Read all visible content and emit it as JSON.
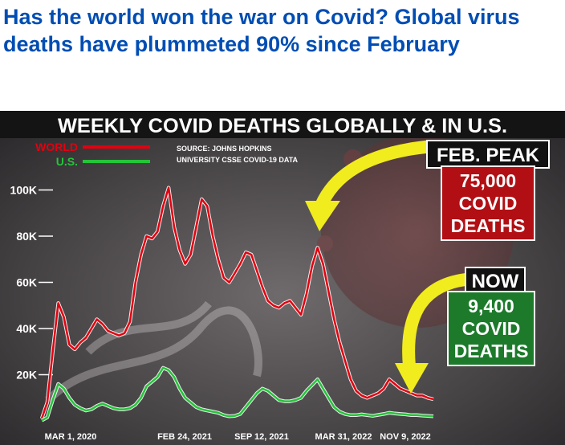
{
  "headline": "Has the world won the war on Covid? Global virus deaths have plummeted 90% since February",
  "chart_data": {
    "type": "line",
    "title": "WEEKLY COVID DEATHS GLOBALLY & IN U.S.",
    "source": "SOURCE: JOHNS HOPKINS",
    "source_line2": "UNIVERSITY CSSE COVID-19 DATA",
    "xlabel": "",
    "ylabel": "",
    "ylim": [
      0,
      110000
    ],
    "yticks": [
      {
        "value": 20000,
        "label": "20K"
      },
      {
        "value": 40000,
        "label": "40K"
      },
      {
        "value": 60000,
        "label": "60K"
      },
      {
        "value": 80000,
        "label": "80K"
      },
      {
        "value": 100000,
        "label": "100K"
      }
    ],
    "xticks": [
      "MAR 1, 2020",
      "FEB 24, 2021",
      "SEP 12, 2021",
      "MAR 31, 2022",
      "NOV 9, 2022"
    ],
    "x": [
      "2020-03-01",
      "2020-03-15",
      "2020-03-29",
      "2020-04-12",
      "2020-04-26",
      "2020-05-10",
      "2020-05-24",
      "2020-06-07",
      "2020-06-21",
      "2020-07-05",
      "2020-07-19",
      "2020-08-02",
      "2020-08-16",
      "2020-08-30",
      "2020-09-13",
      "2020-09-27",
      "2020-10-11",
      "2020-10-25",
      "2020-11-08",
      "2020-11-22",
      "2020-12-06",
      "2020-12-20",
      "2021-01-03",
      "2021-01-17",
      "2021-01-31",
      "2021-02-14",
      "2021-02-28",
      "2021-03-14",
      "2021-03-28",
      "2021-04-11",
      "2021-04-25",
      "2021-05-09",
      "2021-05-23",
      "2021-06-06",
      "2021-06-20",
      "2021-07-04",
      "2021-07-18",
      "2021-08-01",
      "2021-08-15",
      "2021-08-29",
      "2021-09-12",
      "2021-09-26",
      "2021-10-10",
      "2021-10-24",
      "2021-11-07",
      "2021-11-21",
      "2021-12-05",
      "2021-12-19",
      "2022-01-02",
      "2022-01-16",
      "2022-01-30",
      "2022-02-13",
      "2022-02-27",
      "2022-03-13",
      "2022-03-27",
      "2022-04-10",
      "2022-04-24",
      "2022-05-08",
      "2022-05-22",
      "2022-06-05",
      "2022-06-19",
      "2022-07-03",
      "2022-07-17",
      "2022-07-31",
      "2022-08-14",
      "2022-08-28",
      "2022-09-11",
      "2022-09-25",
      "2022-10-09",
      "2022-10-23",
      "2022-11-06",
      "2022-11-20"
    ],
    "series": [
      {
        "name": "WORLD",
        "color": "#e3000f",
        "values": [
          1000,
          8000,
          30000,
          51000,
          45000,
          33000,
          31000,
          34000,
          36000,
          40000,
          44000,
          42000,
          39000,
          38000,
          37000,
          38000,
          43000,
          60000,
          72000,
          80000,
          79000,
          82000,
          93000,
          101000,
          84000,
          74000,
          68000,
          72000,
          84000,
          96000,
          93000,
          80000,
          70000,
          62000,
          60000,
          64000,
          68000,
          73000,
          72000,
          65000,
          58000,
          52000,
          50000,
          49000,
          51000,
          52000,
          49000,
          46000,
          55000,
          67000,
          75000,
          68000,
          56000,
          44000,
          34000,
          26000,
          18000,
          13000,
          11000,
          10000,
          11000,
          12000,
          14000,
          18000,
          16000,
          14000,
          13000,
          12000,
          11000,
          11000,
          10000,
          9400
        ]
      },
      {
        "name": "U.S.",
        "color": "#25c43a",
        "values": [
          200,
          1500,
          9000,
          16000,
          14000,
          10000,
          7000,
          5500,
          4500,
          5000,
          6500,
          7500,
          6500,
          5500,
          5000,
          5000,
          5500,
          7000,
          10000,
          15000,
          17000,
          19000,
          23000,
          22000,
          19000,
          14000,
          10000,
          8000,
          6000,
          5000,
          4500,
          4000,
          3500,
          2500,
          2000,
          2200,
          3000,
          6000,
          9000,
          12000,
          14000,
          13000,
          11000,
          9000,
          8500,
          8500,
          9000,
          10000,
          13000,
          15500,
          18000,
          14000,
          10000,
          6000,
          4000,
          3000,
          2500,
          2500,
          2800,
          2500,
          2200,
          2600,
          3000,
          3500,
          3200,
          3000,
          2800,
          2500,
          2500,
          2300,
          2200,
          2000
        ]
      }
    ],
    "legend": [
      "WORLD",
      "U.S."
    ],
    "annotations": [
      {
        "title": "FEB. PEAK",
        "lines": [
          "75,000",
          "COVID",
          "DEATHS"
        ],
        "color": "#b10f14"
      },
      {
        "title": "NOW",
        "lines": [
          "9,400",
          "COVID",
          "DEATHS"
        ],
        "color": "#1c7a2a"
      }
    ],
    "grid": false,
    "legend_position": "top-left"
  }
}
